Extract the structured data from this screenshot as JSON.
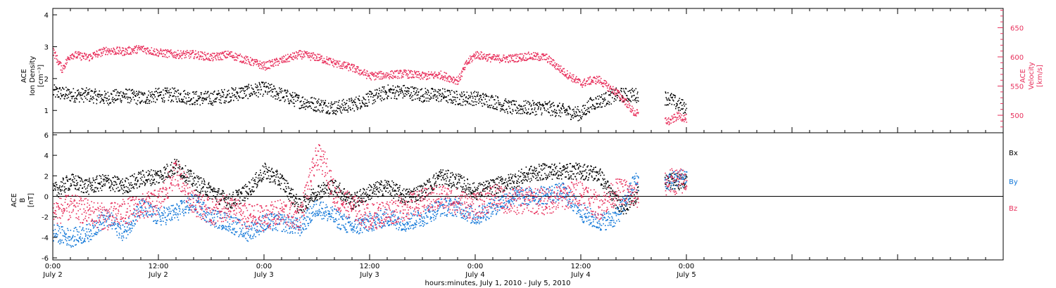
{
  "colors": {
    "black": "#000000",
    "pink": "#e8305c",
    "blue": "#1177d8"
  },
  "top_ylabel_1": "ACE",
  "top_ylabel_2": "Ion Density",
  "top_ylabel_3": "[cm⁻³]",
  "right_ylabel_1": "ACE",
  "right_ylabel_2": "Velocity",
  "right_ylabel_3": "[km/s]",
  "bottom_ylabel_1": "ACE",
  "bottom_ylabel_2": "B",
  "bottom_ylabel_3": "[nT]",
  "xlabel": "hours:minutes, July  1, 2010 - July  5, 2010",
  "legend": [
    "Bx",
    "By",
    "Bz"
  ],
  "chart_data": [
    {
      "type": "scatter",
      "panel": "top",
      "x_unit": "hours since July 2 0:00",
      "xlim": [
        0,
        108
      ],
      "x_ticks": [
        {
          "t": 0,
          "time": "0:00",
          "date": "July 2"
        },
        {
          "t": 12,
          "time": "12:00",
          "date": "July 2"
        },
        {
          "t": 24,
          "time": "0:00",
          "date": "July 3"
        },
        {
          "t": 36,
          "time": "12:00",
          "date": "July 3"
        },
        {
          "t": 48,
          "time": "0:00",
          "date": "July 4"
        },
        {
          "t": 60,
          "time": "12:00",
          "date": "July 4"
        },
        {
          "t": 72,
          "time": "0:00",
          "date": "July 5"
        }
      ],
      "left_axis": {
        "label": "Ion Density [cm⁻³]",
        "ylim": [
          0.3,
          4.2
        ],
        "ticks": [
          1,
          2,
          3,
          4
        ]
      },
      "right_axis": {
        "label": "Velocity [km/s]",
        "ylim": [
          470,
          683
        ],
        "ticks": [
          500,
          550,
          600,
          650
        ]
      },
      "series": [
        {
          "name": "Ion Density",
          "axis": "left",
          "color": "#000000",
          "x": [
            0,
            2,
            4,
            6,
            8,
            10,
            12,
            14,
            16,
            18,
            20,
            22,
            24,
            26,
            28,
            30,
            32,
            34,
            36,
            38,
            40,
            42,
            44,
            46,
            48,
            50,
            52,
            54,
            56,
            58,
            60,
            61,
            62,
            63,
            64,
            65,
            66,
            70,
            71,
            72
          ],
          "y": [
            1.6,
            1.5,
            1.5,
            1.4,
            1.5,
            1.4,
            1.5,
            1.5,
            1.4,
            1.4,
            1.5,
            1.6,
            1.7,
            1.5,
            1.3,
            1.2,
            1.1,
            1.2,
            1.4,
            1.6,
            1.6,
            1.5,
            1.5,
            1.4,
            1.4,
            1.3,
            1.1,
            1.1,
            1.1,
            1.0,
            0.9,
            1.2,
            1.3,
            1.4,
            1.5,
            1.5,
            1.5,
            1.4,
            1.2,
            1.1
          ]
        },
        {
          "name": "Velocity",
          "axis": "right",
          "color": "#e8305c",
          "x": [
            0,
            1,
            2,
            4,
            6,
            8,
            10,
            12,
            14,
            16,
            18,
            20,
            22,
            24,
            26,
            28,
            30,
            32,
            34,
            36,
            38,
            40,
            42,
            44,
            46,
            47,
            48,
            50,
            52,
            54,
            56,
            58,
            60,
            61,
            62,
            63,
            64,
            65,
            66,
            70,
            71,
            72
          ],
          "y": [
            610,
            580,
            605,
            600,
            612,
            610,
            615,
            608,
            605,
            605,
            600,
            605,
            595,
            585,
            595,
            605,
            600,
            590,
            582,
            568,
            570,
            572,
            568,
            570,
            560,
            590,
            605,
            598,
            598,
            602,
            600,
            575,
            555,
            560,
            562,
            550,
            540,
            525,
            505,
            490,
            500,
            495
          ]
        }
      ]
    },
    {
      "type": "scatter",
      "panel": "bottom",
      "x_unit": "hours since July 2 0:00",
      "xlim": [
        0,
        108
      ],
      "ylabel": "B [nT]",
      "ylim": [
        -6.2,
        6.2
      ],
      "ticks": [
        -6,
        -4,
        -2,
        0,
        2,
        4,
        6
      ],
      "series": [
        {
          "name": "Bx",
          "color": "#000000",
          "x": [
            0,
            2,
            4,
            6,
            8,
            10,
            12,
            14,
            16,
            18,
            20,
            22,
            24,
            26,
            28,
            30,
            32,
            34,
            36,
            38,
            40,
            42,
            44,
            46,
            48,
            50,
            52,
            54,
            56,
            58,
            60,
            62,
            64,
            65,
            66,
            70,
            72
          ],
          "y": [
            0.5,
            1.5,
            1.0,
            1.5,
            1.0,
            1.8,
            2.0,
            3.0,
            1.5,
            0.5,
            -0.5,
            0.5,
            2.5,
            1.5,
            -1.0,
            0.5,
            1.0,
            -0.5,
            0.5,
            1.0,
            0.0,
            0.5,
            2.0,
            1.5,
            0.5,
            1.0,
            1.5,
            2.2,
            2.5,
            2.5,
            2.5,
            2.2,
            -0.5,
            -1.0,
            0.0,
            1.5,
            1.5
          ]
        },
        {
          "name": "By",
          "color": "#1177d8",
          "x": [
            0,
            2,
            4,
            6,
            8,
            10,
            12,
            14,
            16,
            18,
            20,
            22,
            24,
            26,
            28,
            30,
            32,
            34,
            36,
            38,
            40,
            42,
            44,
            46,
            48,
            50,
            52,
            54,
            56,
            58,
            60,
            62,
            64,
            65,
            66,
            70,
            72
          ],
          "y": [
            -3.5,
            -4.0,
            -3.5,
            -2.0,
            -3.5,
            -1.0,
            -2.0,
            -1.5,
            -0.5,
            -2.0,
            -2.5,
            -3.5,
            -2.5,
            -2.5,
            -3.0,
            -1.0,
            -2.0,
            -3.0,
            -2.5,
            -2.0,
            -2.5,
            -2.0,
            -1.0,
            -1.0,
            -2.0,
            -1.0,
            0.0,
            0.0,
            0.2,
            0.5,
            -1.5,
            -2.5,
            -2.0,
            -0.5,
            1.5,
            1.5,
            2.0
          ]
        },
        {
          "name": "Bz",
          "color": "#e8305c",
          "x": [
            0,
            2,
            4,
            6,
            8,
            10,
            12,
            14,
            16,
            18,
            20,
            22,
            24,
            26,
            28,
            30,
            31,
            32,
            34,
            36,
            38,
            40,
            42,
            44,
            46,
            48,
            50,
            52,
            54,
            56,
            58,
            60,
            62,
            64,
            65,
            66,
            70,
            72
          ],
          "y": [
            -1.5,
            -1.0,
            -1.5,
            -2.0,
            -1.5,
            -1.0,
            -0.5,
            2.5,
            -0.5,
            -1.5,
            -1.0,
            -2.0,
            -2.0,
            -1.5,
            -2.0,
            4.0,
            3.0,
            0.0,
            -1.0,
            -2.0,
            -1.5,
            -1.0,
            -0.5,
            0.0,
            -0.5,
            -1.0,
            0.0,
            -0.5,
            -0.3,
            -0.5,
            0.0,
            0.5,
            -1.0,
            0.5,
            0.5,
            0.0,
            1.5,
            1.5
          ]
        }
      ]
    }
  ]
}
